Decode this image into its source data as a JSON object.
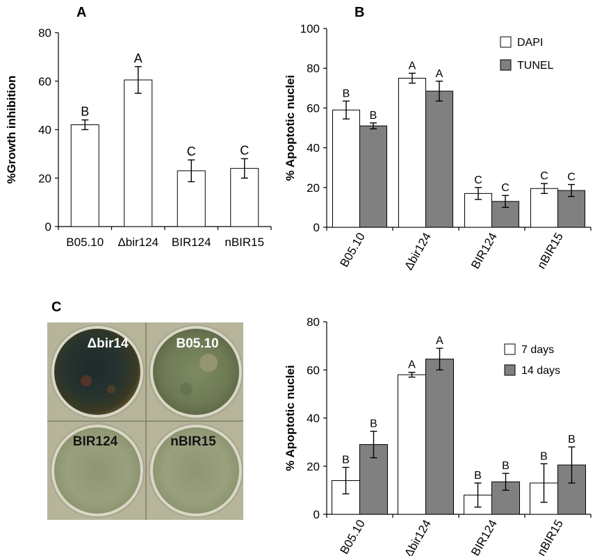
{
  "panels": {
    "A": {
      "letter": "A",
      "chart_data": {
        "type": "bar",
        "ylabel": "%Growth inhibition",
        "ylim": [
          0,
          80
        ],
        "yticks": [
          0,
          20,
          40,
          60,
          80
        ],
        "categories": [
          "B05.10",
          "Δbir124",
          "BIR124",
          "nBIR15"
        ],
        "series": [
          {
            "values": [
              42,
              60.5,
              23,
              24
            ],
            "errors": [
              2,
              5.5,
              4.5,
              4
            ],
            "labels": [
              "B",
              "A",
              "C",
              "C"
            ],
            "color": "#ffffff"
          }
        ]
      }
    },
    "B": {
      "letter": "B",
      "chart_data": {
        "type": "bar",
        "ylabel": "% Apoptotic nuclei",
        "ylim": [
          0,
          100
        ],
        "yticks": [
          0,
          20,
          40,
          60,
          80,
          100
        ],
        "categories": [
          "B05.10",
          "Δbir124",
          "BIR124",
          "nBIR15"
        ],
        "legend": "top-right",
        "series": [
          {
            "name": "DAPI",
            "values": [
              59,
              75,
              17,
              19.5
            ],
            "errors": [
              4.5,
              2.5,
              3,
              2.5
            ],
            "labels": [
              "B",
              "A",
              "C",
              "C"
            ],
            "color": "#ffffff"
          },
          {
            "name": "TUNEL",
            "values": [
              51,
              68.5,
              13,
              18.5
            ],
            "errors": [
              1.5,
              5,
              3,
              3
            ],
            "labels": [
              "B",
              "A",
              "C",
              "C"
            ],
            "color": "#808080"
          }
        ]
      }
    },
    "C": {
      "letter": "C",
      "plates": [
        "Δbir14",
        "B05.10",
        "BIR124",
        "nBIR15"
      ]
    },
    "D": {
      "chart_data": {
        "type": "bar",
        "ylabel": "% Apoptotic nuclei",
        "ylim": [
          0,
          80
        ],
        "yticks": [
          0,
          20,
          40,
          60,
          80
        ],
        "categories": [
          "B05.10",
          "Δbir124",
          "BIR124",
          "nBIR15"
        ],
        "legend": "top-right",
        "series": [
          {
            "name": "7 days",
            "values": [
              14,
              58,
              8,
              13
            ],
            "errors": [
              5.5,
              1,
              5,
              8
            ],
            "labels": [
              "B",
              "A",
              "B",
              "B"
            ],
            "color": "#ffffff"
          },
          {
            "name": "14 days",
            "values": [
              29,
              64.5,
              13.5,
              20.5
            ],
            "errors": [
              5.5,
              4.5,
              3.5,
              7.5
            ],
            "labels": [
              "B",
              "A",
              "B",
              "B"
            ],
            "color": "#808080"
          }
        ]
      }
    }
  }
}
